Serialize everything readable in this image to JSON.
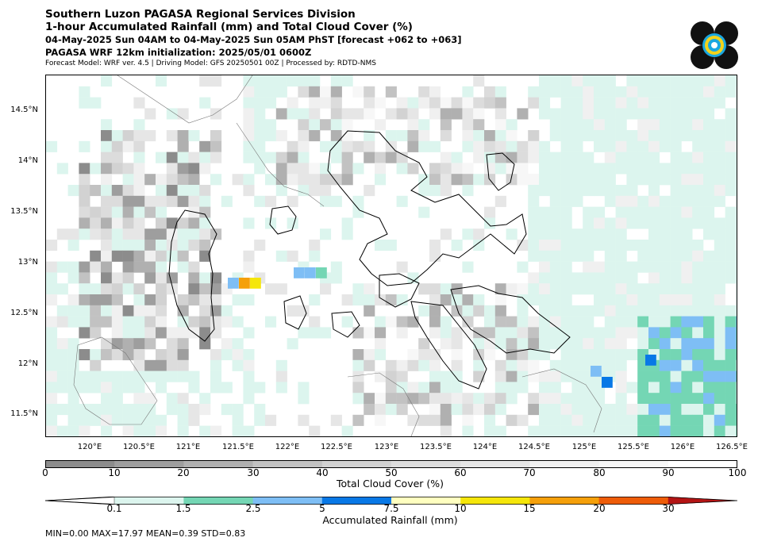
{
  "header": {
    "line1": "Southern Luzon PAGASA Regional Services Division",
    "line2": "1-hour Accumulated Rainfall (mm) and Total Cloud Cover (%)",
    "line3": "04-May-2025 Sun 04AM to 04-May-2025 Sun 05AM PhST [forecast +062 to +063]",
    "line4": "PAGASA WRF 12km initialization: 2025/05/01 0600Z",
    "line5": "Forecast Model: WRF ver. 4.5 | Driving Model: GFS 20250501 00Z | Processed by: RDTD-NMS"
  },
  "map": {
    "lat_labels": [
      "14.5°N",
      "14°N",
      "13.5°N",
      "13°N",
      "12.5°N",
      "12°N",
      "11.5°N"
    ],
    "lon_labels": [
      "120°E",
      "120.5°E",
      "121°E",
      "121.5°E",
      "122°E",
      "122.5°E",
      "123°E",
      "123.5°E",
      "124°E",
      "124.5°E",
      "125°E",
      "125.5°E",
      "126°E",
      "126.5°E"
    ],
    "lon_range": [
      119.6,
      126.6
    ],
    "lat_range": [
      11.3,
      14.85
    ]
  },
  "cloud_colorbar": {
    "label": "Total Cloud Cover (%)",
    "ticks": [
      "0",
      "10",
      "20",
      "30",
      "40",
      "50",
      "60",
      "70",
      "80",
      "90",
      "100"
    ],
    "colors": [
      "#8c8c8c",
      "#9e9e9e",
      "#b0b0b0",
      "#c2c2c2",
      "#d2d2d2",
      "#dcdcdc",
      "#e6e6e6",
      "#f0f0f0",
      "#f7f7f7",
      "#ffffff"
    ]
  },
  "rain_colorbar": {
    "label": "Accumulated Rainfall (mm)",
    "ticks": [
      "0.1",
      "1.5",
      "2.5",
      "5",
      "7.5",
      "10",
      "15",
      "20",
      "30"
    ],
    "colors": [
      "#dcf5ee",
      "#74d6b4",
      "#7ebef5",
      "#0878e6",
      "#ffffc0",
      "#f5e60a",
      "#f5a00a",
      "#ee5c08",
      "#b41414"
    ]
  },
  "stats": {
    "text": "MIN=0.00   MAX=17.97   MEAN=0.39   STD=0.83"
  }
}
